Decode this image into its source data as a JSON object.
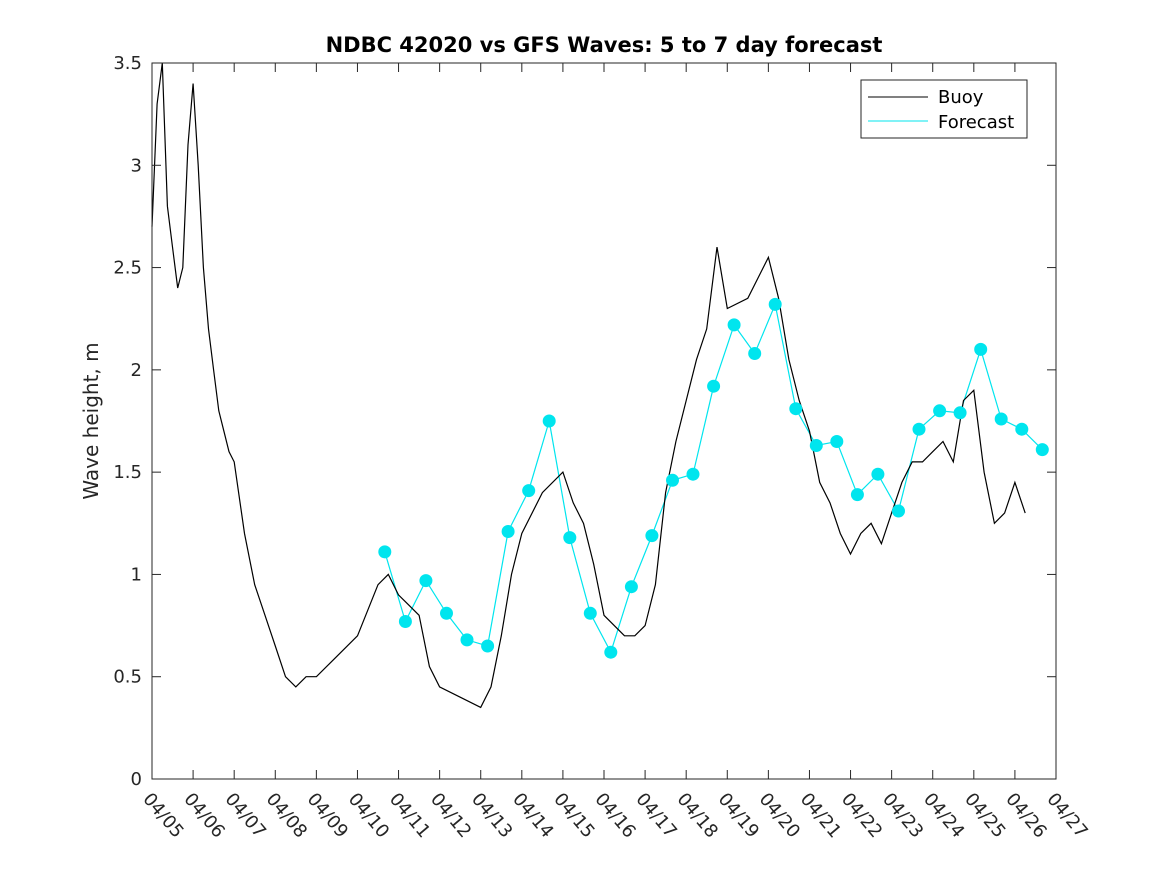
{
  "chart_data": {
    "type": "line",
    "title": "NDBC 42020 vs GFS Waves: 5 to 7 day forecast",
    "xlabel": "",
    "ylabel": "Wave height, m",
    "xlim": [
      "04/05",
      "04/27"
    ],
    "ylim": [
      0,
      3.5
    ],
    "x_ticks": [
      "04/05",
      "04/06",
      "04/07",
      "04/08",
      "04/09",
      "04/10",
      "04/11",
      "04/12",
      "04/13",
      "04/14",
      "04/15",
      "04/16",
      "04/17",
      "04/18",
      "04/19",
      "04/20",
      "04/21",
      "04/22",
      "04/23",
      "04/24",
      "04/25",
      "04/26",
      "04/27"
    ],
    "y_ticks": [
      "0",
      "0.5",
      "1",
      "1.5",
      "2",
      "2.5",
      "3",
      "3.5"
    ],
    "legend": {
      "position": "top-right",
      "entries": [
        "Buoy",
        "Forecast"
      ]
    },
    "colors": {
      "buoy": "#000000",
      "forecast": "#00e5ee"
    },
    "series": [
      {
        "name": "Buoy",
        "x": [
          "04/05 00:00",
          "04/05 03:00",
          "04/05 06:00",
          "04/05 09:00",
          "04/05 12:00",
          "04/05 15:00",
          "04/05 18:00",
          "04/05 21:00",
          "04/06 00:00",
          "04/06 03:00",
          "04/06 06:00",
          "04/06 09:00",
          "04/06 12:00",
          "04/06 15:00",
          "04/06 18:00",
          "04/06 21:00",
          "04/07 00:00",
          "04/07 06:00",
          "04/07 12:00",
          "04/07 18:00",
          "04/08 00:00",
          "04/08 06:00",
          "04/08 12:00",
          "04/08 18:00",
          "04/09 00:00",
          "04/09 12:00",
          "04/10 00:00",
          "04/10 12:00",
          "04/10 18:00",
          "04/11 00:00",
          "04/11 06:00",
          "04/11 12:00",
          "04/11 18:00",
          "04/12 00:00",
          "04/12 12:00",
          "04/13 00:00",
          "04/13 06:00",
          "04/13 12:00",
          "04/13 18:00",
          "04/14 00:00",
          "04/14 12:00",
          "04/15 00:00",
          "04/15 06:00",
          "04/15 12:00",
          "04/15 18:00",
          "04/16 00:00",
          "04/16 12:00",
          "04/16 18:00",
          "04/17 00:00",
          "04/17 06:00",
          "04/17 12:00",
          "04/17 18:00",
          "04/18 00:00",
          "04/18 06:00",
          "04/18 12:00",
          "04/18 18:00",
          "04/19 00:00",
          "04/19 12:00",
          "04/20 00:00",
          "04/20 06:00",
          "04/20 12:00",
          "04/20 18:00",
          "04/21 00:00",
          "04/21 06:00",
          "04/21 12:00",
          "04/21 18:00",
          "04/22 00:00",
          "04/22 06:00",
          "04/22 12:00",
          "04/22 18:00",
          "04/23 00:00",
          "04/23 06:00",
          "04/23 12:00",
          "04/23 18:00",
          "04/24 00:00",
          "04/24 06:00",
          "04/24 12:00",
          "04/24 18:00",
          "04/25 00:00",
          "04/25 06:00",
          "04/25 12:00",
          "04/25 18:00",
          "04/26 00:00",
          "04/26 06:00"
        ],
        "values": [
          2.7,
          3.3,
          3.5,
          2.8,
          2.6,
          2.4,
          2.5,
          3.1,
          3.4,
          3.0,
          2.5,
          2.2,
          2.0,
          1.8,
          1.7,
          1.6,
          1.55,
          1.2,
          0.95,
          0.8,
          0.65,
          0.5,
          0.45,
          0.5,
          0.5,
          0.6,
          0.7,
          0.95,
          1.0,
          0.9,
          0.85,
          0.8,
          0.55,
          0.45,
          0.4,
          0.35,
          0.45,
          0.7,
          1.0,
          1.2,
          1.4,
          1.5,
          1.35,
          1.25,
          1.05,
          0.8,
          0.7,
          0.7,
          0.75,
          0.95,
          1.4,
          1.65,
          1.85,
          2.05,
          2.2,
          2.6,
          2.3,
          2.35,
          2.55,
          2.35,
          2.05,
          1.85,
          1.7,
          1.45,
          1.35,
          1.2,
          1.1,
          1.2,
          1.25,
          1.15,
          1.3,
          1.45,
          1.55,
          1.55,
          1.6,
          1.65,
          1.55,
          1.85,
          1.9,
          1.5,
          1.25,
          1.3,
          1.45,
          1.3
        ]
      },
      {
        "name": "Forecast",
        "x": [
          "04/10 16:00",
          "04/11 04:00",
          "04/11 16:00",
          "04/12 04:00",
          "04/12 16:00",
          "04/13 04:00",
          "04/13 16:00",
          "04/14 04:00",
          "04/14 16:00",
          "04/15 04:00",
          "04/15 16:00",
          "04/16 04:00",
          "04/16 16:00",
          "04/17 04:00",
          "04/17 16:00",
          "04/18 04:00",
          "04/18 16:00",
          "04/19 04:00",
          "04/19 16:00",
          "04/20 04:00",
          "04/20 16:00",
          "04/21 04:00",
          "04/21 16:00",
          "04/22 04:00",
          "04/22 16:00",
          "04/23 04:00",
          "04/23 16:00",
          "04/24 04:00",
          "04/24 16:00",
          "04/25 04:00",
          "04/25 16:00",
          "04/26 04:00",
          "04/26 16:00"
        ],
        "values": [
          1.11,
          0.77,
          0.97,
          0.81,
          0.68,
          0.65,
          1.21,
          1.41,
          1.75,
          1.18,
          0.81,
          0.62,
          0.94,
          1.19,
          1.46,
          1.49,
          1.92,
          2.22,
          2.08,
          2.32,
          1.81,
          1.63,
          1.65,
          1.39,
          1.49,
          1.31,
          1.71,
          1.8,
          1.79,
          2.1,
          1.76,
          1.71,
          1.61
        ]
      }
    ]
  }
}
